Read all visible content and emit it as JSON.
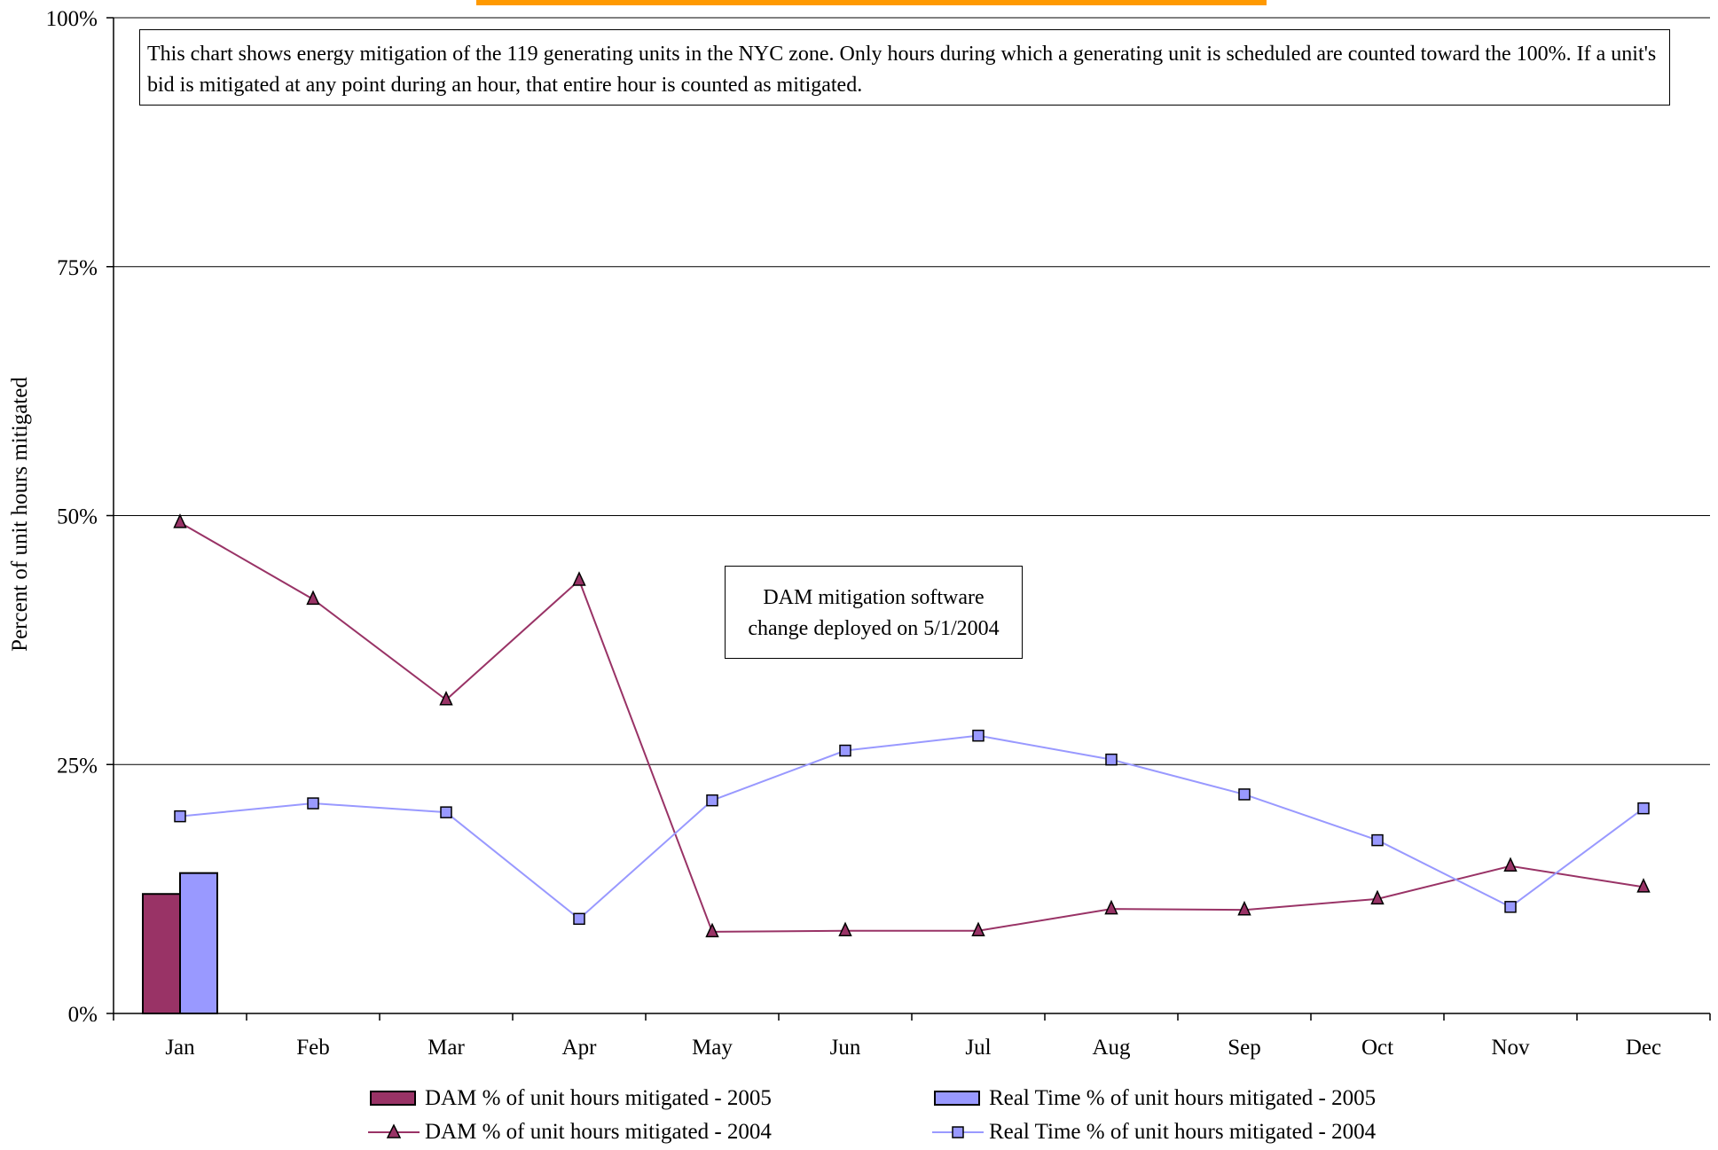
{
  "colors": {
    "dam_2005": "#993366",
    "rt_2005": "#9999FF",
    "dam_2004_line": "#993366",
    "rt_2004_line": "#9999FF",
    "gridline": "#000000",
    "top_bar": "#FF9900"
  },
  "notes": {
    "top": "This chart shows energy mitigation of the 119 generating units in the NYC zone.  Only hours during which a generating unit is scheduled are counted toward the 100%. If a unit's bid is mitigated at any point during an hour, that entire hour is counted as mitigated.",
    "callout_line1": "DAM mitigation software",
    "callout_line2": "change deployed on 5/1/2004"
  },
  "chart_data": {
    "type": "bar+line",
    "ylabel": "Percent of unit hours mitigated",
    "ylim": [
      0,
      100
    ],
    "yticks": [
      0,
      25,
      50,
      75,
      100
    ],
    "ytick_labels": [
      "0%",
      "25%",
      "50%",
      "75%",
      "100%"
    ],
    "grid": "horizontal",
    "legend_position": "bottom",
    "categories": [
      "Jan",
      "Feb",
      "Mar",
      "Apr",
      "May",
      "Jun",
      "Jul",
      "Aug",
      "Sep",
      "Oct",
      "Nov",
      "Dec"
    ],
    "bar_series": [
      {
        "name": "DAM % of unit hours mitigated - 2005",
        "color": "#993366",
        "values": [
          12,
          null,
          null,
          null,
          null,
          null,
          null,
          null,
          null,
          null,
          null,
          null
        ]
      },
      {
        "name": "Real Time % of unit hours mitigated - 2005",
        "color": "#9999FF",
        "values": [
          14.1,
          null,
          null,
          null,
          null,
          null,
          null,
          null,
          null,
          null,
          null,
          null
        ]
      }
    ],
    "line_series": [
      {
        "name": "DAM % of unit hours mitigated - 2004",
        "color": "#993366",
        "marker": "triangle",
        "values": [
          49.3,
          41.6,
          31.5,
          43.5,
          8.2,
          8.3,
          8.3,
          10.5,
          10.4,
          11.5,
          14.8,
          12.7
        ]
      },
      {
        "name": "Real Time % of unit hours mitigated - 2004",
        "color": "#9999FF",
        "marker": "square",
        "values": [
          19.8,
          21.1,
          20.2,
          9.5,
          21.4,
          26.4,
          27.9,
          25.5,
          22.0,
          17.4,
          10.7,
          20.6
        ]
      }
    ]
  }
}
